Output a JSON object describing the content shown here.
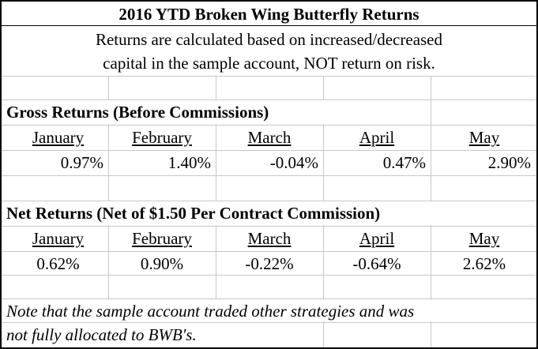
{
  "title": "2016 YTD Broken Wing Butterfly Returns",
  "subtitle_lines": [
    "Returns are calculated based on increased/decreased",
    "capital in the sample account, NOT return on risk."
  ],
  "gross": {
    "heading": "Gross Returns (Before Commissions)",
    "months": [
      "January",
      "February",
      "March",
      "April",
      "May"
    ],
    "values": [
      "0.97%",
      "1.40%",
      "-0.04%",
      "0.47%",
      "2.90%"
    ]
  },
  "net": {
    "heading": "Net Returns (Net of $1.50 Per Contract Commission)",
    "months": [
      "January",
      "February",
      "March",
      "April",
      "May"
    ],
    "values": [
      "0.62%",
      "0.90%",
      "-0.22%",
      "-0.64%",
      "2.62%"
    ]
  },
  "note_lines": [
    "Note that the sample account traded other strategies and was",
    "not fully allocated to BWB's."
  ]
}
